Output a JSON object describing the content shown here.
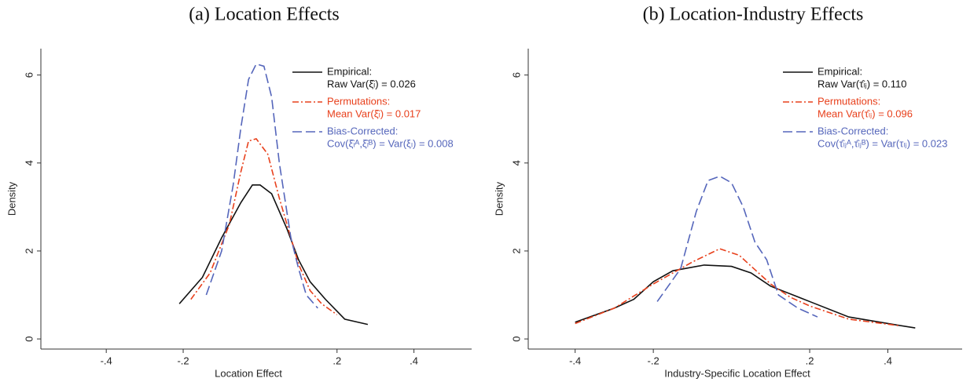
{
  "chart_data": [
    {
      "type": "line",
      "title": "(a) Location Effects",
      "x_label": "Location Effect",
      "y_label": "Density",
      "xlim": [
        -0.57,
        0.55
      ],
      "ylim": [
        -0.23,
        6.6
      ],
      "xticks": [
        {
          "value": -0.4,
          "label": "-.4"
        },
        {
          "value": -0.2,
          "label": "-.2"
        },
        {
          "value": 0.2,
          "label": ".2"
        },
        {
          "value": 0.4,
          "label": ".4"
        }
      ],
      "yticks": [
        0,
        2,
        4,
        6
      ],
      "legend": "upper right",
      "series": [
        {
          "name": "Empirical:",
          "note": "Raw Var(ξ̂ₗ) = 0.026",
          "color": "#111111",
          "dash": "solid",
          "x": [
            -0.21,
            -0.15,
            -0.1,
            -0.05,
            -0.02,
            0,
            0.03,
            0.07,
            0.1,
            0.13,
            0.17,
            0.22,
            0.28
          ],
          "values": [
            0.8,
            1.4,
            2.3,
            3.1,
            3.5,
            3.5,
            3.3,
            2.5,
            1.8,
            1.3,
            0.9,
            0.45,
            0.33
          ]
        },
        {
          "name": "Permutations:",
          "note": "Mean Var(ξ̂ₗ) = 0.017",
          "color": "#e8401c",
          "dash": "dashdot",
          "x": [
            -0.18,
            -0.13,
            -0.08,
            -0.05,
            -0.03,
            -0.01,
            0.02,
            0.05,
            0.08,
            0.1,
            0.13,
            0.16,
            0.2
          ],
          "values": [
            0.9,
            1.5,
            2.6,
            3.8,
            4.5,
            4.55,
            4.2,
            3.2,
            2.3,
            1.7,
            1.1,
            0.8,
            0.55
          ]
        },
        {
          "name": "Bias-Corrected:",
          "note": "Cov(ξ̂ₗᴬ,ξ̂ₗᴮ) = Var(ξₗ) = 0.008",
          "color": "#5566bb",
          "dash": "longdash",
          "x": [
            -0.14,
            -0.1,
            -0.07,
            -0.05,
            -0.03,
            -0.01,
            0.01,
            0.03,
            0.05,
            0.08,
            0.1,
            0.12,
            0.15
          ],
          "values": [
            1.0,
            2.0,
            3.5,
            4.8,
            5.9,
            6.25,
            6.2,
            5.5,
            4.0,
            2.3,
            1.6,
            1.0,
            0.7
          ]
        }
      ]
    },
    {
      "type": "line",
      "title": "(b) Location-Industry Effects",
      "x_label": "Industry-Specific Location Effect",
      "y_label": "Density",
      "xlim": [
        -0.52,
        0.59
      ],
      "ylim": [
        -0.23,
        6.6
      ],
      "xticks": [
        {
          "value": -0.4,
          "label": "-.4"
        },
        {
          "value": -0.2,
          "label": "-.2"
        },
        {
          "value": 0.2,
          "label": ".2"
        },
        {
          "value": 0.4,
          "label": ".4"
        }
      ],
      "yticks": [
        0,
        2,
        4,
        6
      ],
      "legend": "upper right",
      "series": [
        {
          "name": "Empirical:",
          "note": "Raw Var(τ̂ₗⱼ) = 0.110",
          "color": "#111111",
          "dash": "solid",
          "x": [
            -0.4,
            -0.3,
            -0.25,
            -0.2,
            -0.15,
            -0.07,
            0,
            0.05,
            0.1,
            0.2,
            0.3,
            0.4,
            0.47
          ],
          "values": [
            0.38,
            0.7,
            0.9,
            1.3,
            1.55,
            1.68,
            1.65,
            1.5,
            1.2,
            0.85,
            0.5,
            0.35,
            0.25
          ]
        },
        {
          "name": "Permutations:",
          "note": "Mean Var(τ̂ₗⱼ) = 0.096",
          "color": "#e8401c",
          "dash": "dashdot",
          "x": [
            -0.4,
            -0.3,
            -0.2,
            -0.1,
            -0.03,
            0.02,
            0.1,
            0.15,
            0.2,
            0.3,
            0.43
          ],
          "values": [
            0.35,
            0.7,
            1.25,
            1.75,
            2.05,
            1.9,
            1.25,
            0.95,
            0.75,
            0.45,
            0.3
          ]
        },
        {
          "name": "Bias-Corrected:",
          "note": "Cov(τ̂ₗⱼᴬ,τ̂ₗⱼᴮ) = Var(τₗⱼ) = 0.023",
          "color": "#5566bb",
          "dash": "longdash",
          "x": [
            -0.19,
            -0.13,
            -0.09,
            -0.06,
            -0.03,
            0,
            0.03,
            0.06,
            0.09,
            0.12,
            0.17,
            0.22
          ],
          "values": [
            0.85,
            1.6,
            2.9,
            3.6,
            3.7,
            3.55,
            3.0,
            2.2,
            1.8,
            1.0,
            0.7,
            0.5
          ]
        }
      ]
    }
  ]
}
